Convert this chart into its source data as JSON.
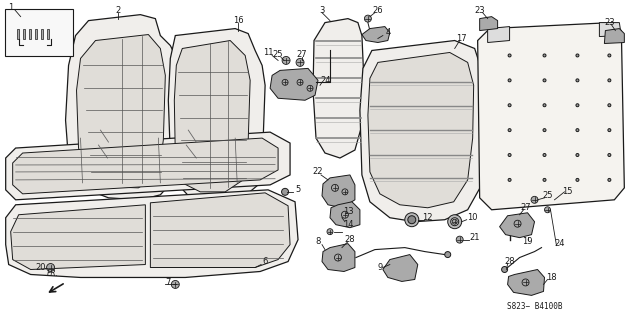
{
  "bg_color": "#ffffff",
  "line_color": "#1a1a1a",
  "fill_light": "#f0eeeb",
  "fill_medium": "#e0ddd8",
  "fill_dark": "#c8c4be",
  "diagram_code": "S823− B4100B"
}
